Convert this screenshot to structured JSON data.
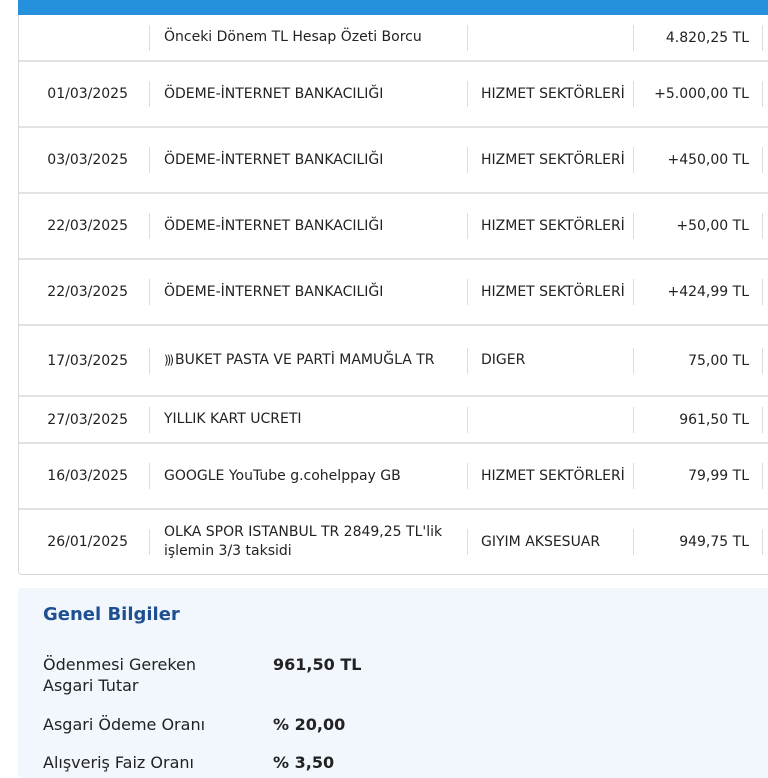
{
  "colors": {
    "header_bar": "#2591dc",
    "panel_bg": "#f1f7fc",
    "panel_title": "#1d4f91"
  },
  "transactions": [
    {
      "date": "",
      "description": "Önceki Dönem TL Hesap Özeti Borcu",
      "category": "",
      "amount": "4.820,25 TL"
    },
    {
      "date": "01/03/2025",
      "description": "ÖDEME-İNTERNET BANKACILIĞI",
      "category": "HIZMET SEKTÖRLERİ",
      "amount": "+5.000,00 TL"
    },
    {
      "date": "03/03/2025",
      "description": "ÖDEME-İNTERNET BANKACILIĞI",
      "category": "HIZMET SEKTÖRLERİ",
      "amount": "+450,00 TL"
    },
    {
      "date": "22/03/2025",
      "description": "ÖDEME-İNTERNET BANKACILIĞI",
      "category": "HIZMET SEKTÖRLERİ",
      "amount": "+50,00 TL"
    },
    {
      "date": "22/03/2025",
      "description": "ÖDEME-İNTERNET BANKACILIĞI",
      "category": "HIZMET SEKTÖRLERİ",
      "amount": "+424,99 TL"
    },
    {
      "date": "17/03/2025",
      "description": "BUKET PASTA VE PARTİ MAMUĞLA TR",
      "category": "DIGER",
      "amount": "75,00 TL",
      "icon": "contactless-icon"
    },
    {
      "date": "27/03/2025",
      "description": "YILLIK KART UCRETI",
      "category": "",
      "amount": "961,50 TL"
    },
    {
      "date": "16/03/2025",
      "description": "GOOGLE YouTube g.cohelppay GB",
      "category": "HIZMET SEKTÖRLERİ",
      "amount": "79,99 TL"
    },
    {
      "date": "26/01/2025",
      "description": "OLKA SPOR ISTANBUL TR 2849,25 TL'lik işlemin 3/3 taksidi",
      "category": "GIYIM AKSESUAR",
      "amount": "949,75 TL"
    }
  ],
  "general": {
    "title": "Genel Bilgiler",
    "items": [
      {
        "label": "Ödenmesi Gereken Asgari Tutar",
        "value": "961,50 TL"
      },
      {
        "label": "Asgari Ödeme Oranı",
        "value": "% 20,00"
      },
      {
        "label": "Alışveriş Faiz Oranı",
        "value": "% 3,50"
      }
    ]
  }
}
